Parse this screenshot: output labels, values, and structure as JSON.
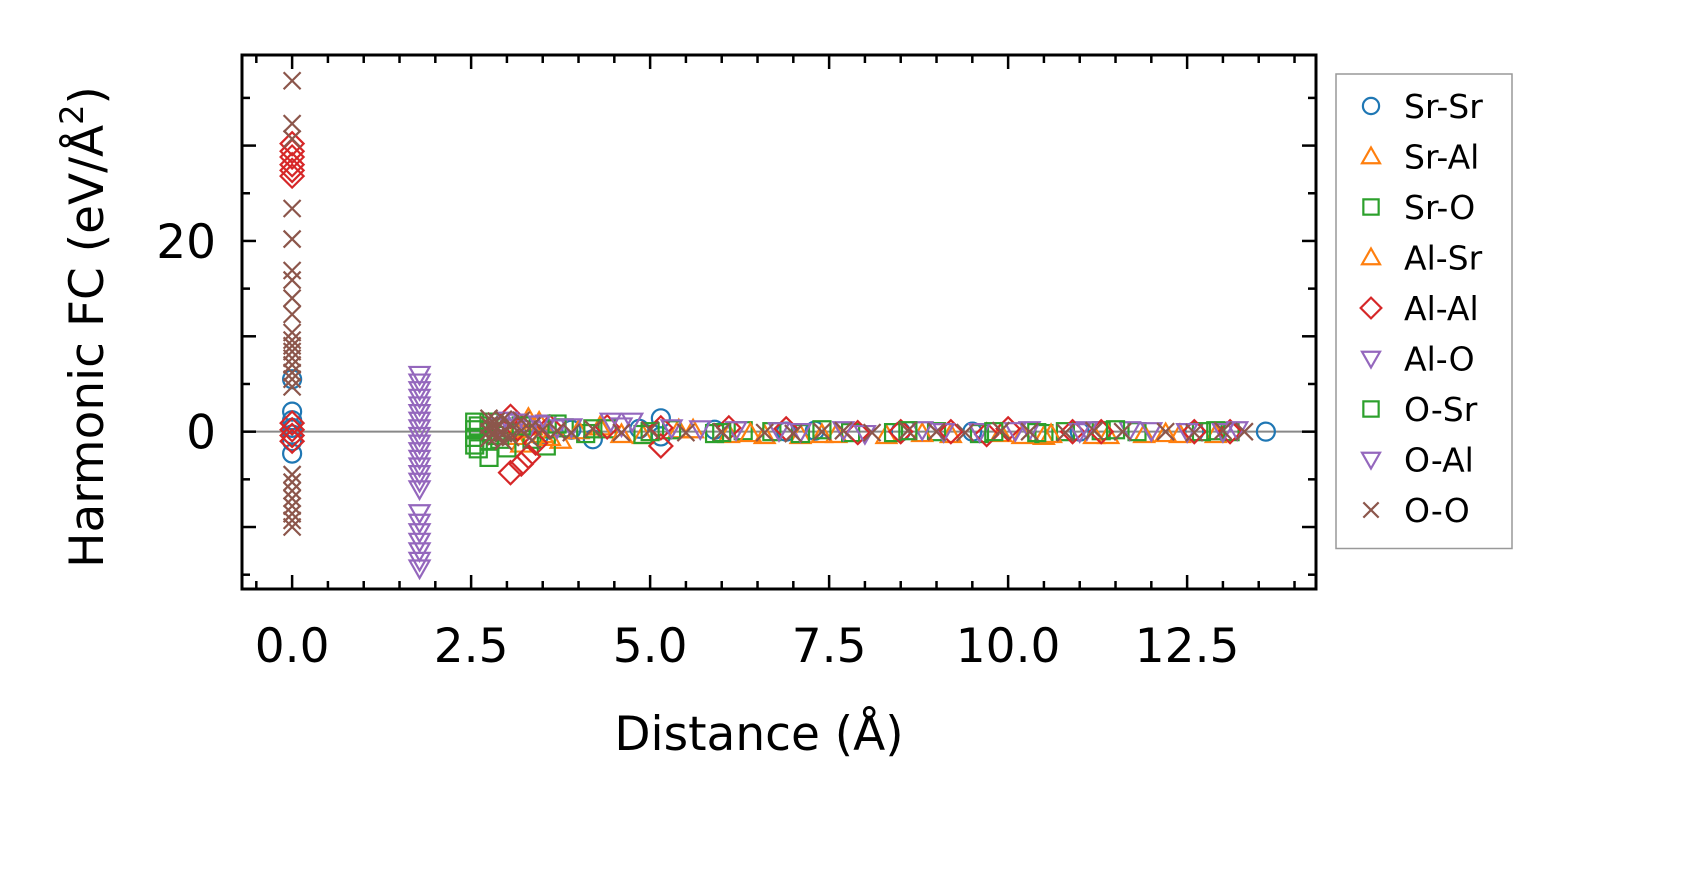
{
  "chart_data": {
    "type": "scatter",
    "xlabel": "Distance (Å)",
    "ylabel_main": "Harmonic FC (eV/Å",
    "ylabel_sup": "2",
    "ylabel_close": ")",
    "xlim": [
      -0.7,
      14.3
    ],
    "ylim": [
      -16.5,
      39.5
    ],
    "xticks": [
      0.0,
      2.5,
      5.0,
      7.5,
      10.0,
      12.5
    ],
    "xtick_labels": [
      "0.0",
      "2.5",
      "5.0",
      "7.5",
      "10.0",
      "12.5"
    ],
    "yticks": [
      0,
      20
    ],
    "ytick_labels": [
      "0",
      "20"
    ],
    "x_minor_step": 0.5,
    "y_minor_step": 5,
    "zero_line": true,
    "legend_position": "outside-right",
    "series": [
      {
        "name": "Sr-Sr",
        "marker": "circle",
        "color": "#1f77b4",
        "points": [
          [
            0,
            5.5
          ],
          [
            0,
            2.1
          ],
          [
            0,
            1.2
          ],
          [
            0,
            0.4
          ],
          [
            0,
            -0.3
          ],
          [
            0,
            -1.0
          ],
          [
            0,
            -2.3
          ],
          [
            3.45,
            -0.4
          ],
          [
            3.9,
            0.2
          ],
          [
            4.2,
            -0.8
          ],
          [
            4.85,
            0.3
          ],
          [
            5.15,
            1.4
          ],
          [
            5.15,
            -0.5
          ],
          [
            5.9,
            0.2
          ],
          [
            6.9,
            0
          ],
          [
            7.3,
            0.1
          ],
          [
            8.5,
            0
          ],
          [
            9.5,
            0
          ],
          [
            11.0,
            0
          ],
          [
            12.6,
            0
          ],
          [
            13.6,
            0
          ]
        ]
      },
      {
        "name": "Sr-Al",
        "marker": "triangle-up",
        "color": "#ff7f0e",
        "points": [
          [
            3.1,
            -0.5
          ],
          [
            3.2,
            -1.3
          ],
          [
            3.3,
            1.4
          ],
          [
            3.35,
            0.5
          ],
          [
            3.5,
            -0.3
          ],
          [
            3.75,
            -0.9
          ],
          [
            4.3,
            0.5
          ],
          [
            4.9,
            -0.4
          ],
          [
            5.4,
            0.2
          ],
          [
            6.1,
            -0.3
          ],
          [
            6.6,
            -0.4
          ],
          [
            7.1,
            -0.4
          ],
          [
            7.6,
            -0.3
          ],
          [
            8.3,
            -0.4
          ],
          [
            9.2,
            -0.3
          ],
          [
            10.2,
            -0.4
          ],
          [
            10.5,
            -0.5
          ],
          [
            11.2,
            -0.4
          ],
          [
            11.9,
            -0.3
          ],
          [
            12.4,
            -0.3
          ],
          [
            12.9,
            -0.3
          ]
        ]
      },
      {
        "name": "Sr-O",
        "marker": "square",
        "color": "#2ca02c",
        "points": [
          [
            2.55,
            1.0
          ],
          [
            2.55,
            0.2
          ],
          [
            2.55,
            -0.6
          ],
          [
            2.55,
            -1.4
          ],
          [
            2.6,
            -1.8
          ],
          [
            2.75,
            1.0
          ],
          [
            2.75,
            0
          ],
          [
            2.75,
            -1.0
          ],
          [
            2.75,
            -2.7
          ],
          [
            2.9,
            0.4
          ],
          [
            2.9,
            -0.8
          ],
          [
            3.0,
            -1.7
          ],
          [
            3.35,
            -0.8
          ],
          [
            3.55,
            -1.5
          ],
          [
            3.8,
            0.4
          ],
          [
            4.1,
            -0.2
          ],
          [
            4.4,
            0.3
          ],
          [
            4.9,
            -0.3
          ],
          [
            5.3,
            0.2
          ],
          [
            5.9,
            -0.2
          ],
          [
            6.3,
            0.1
          ],
          [
            6.7,
            0
          ],
          [
            7.1,
            -0.2
          ],
          [
            7.8,
            -0.1
          ],
          [
            8.4,
            -0.1
          ],
          [
            9.0,
            0
          ],
          [
            9.6,
            -0.2
          ],
          [
            10.5,
            -0.2
          ],
          [
            10.8,
            0
          ],
          [
            11.3,
            0.1
          ],
          [
            11.8,
            0
          ],
          [
            12.7,
            0
          ],
          [
            13.1,
            0
          ]
        ]
      },
      {
        "name": "Al-Sr",
        "marker": "triangle-up",
        "color": "#ff7f0e",
        "points": [
          [
            3.15,
            0.2
          ],
          [
            3.45,
            1.0
          ],
          [
            3.6,
            -0.6
          ],
          [
            4.0,
            0.1
          ],
          [
            4.6,
            -0.3
          ],
          [
            5.6,
            0.2
          ],
          [
            6.4,
            -0.2
          ],
          [
            7.4,
            -0.3
          ],
          [
            8.8,
            -0.2
          ],
          [
            9.9,
            -0.2
          ],
          [
            10.6,
            -0.3
          ],
          [
            11.4,
            -0.4
          ],
          [
            12.2,
            -0.2
          ]
        ]
      },
      {
        "name": "Al-Al",
        "marker": "diamond",
        "color": "#d62728",
        "points": [
          [
            0,
            30.2
          ],
          [
            0,
            29.4
          ],
          [
            0,
            28.8
          ],
          [
            0,
            28.0
          ],
          [
            0,
            27.4
          ],
          [
            0,
            26.8
          ],
          [
            0,
            0.9
          ],
          [
            0,
            0.2
          ],
          [
            0,
            -0.4
          ],
          [
            0,
            -1.0
          ],
          [
            3.05,
            -4.3
          ],
          [
            3.05,
            1.6
          ],
          [
            3.2,
            -3.4
          ],
          [
            3.3,
            -2.6
          ],
          [
            3.15,
            0.3
          ],
          [
            3.4,
            -1.2
          ],
          [
            3.6,
            0.5
          ],
          [
            4.4,
            0.5
          ],
          [
            5.15,
            -1.5
          ],
          [
            5.15,
            0.4
          ],
          [
            6.1,
            0.4
          ],
          [
            6.9,
            0.3
          ],
          [
            7.9,
            -0.1
          ],
          [
            8.5,
            0
          ],
          [
            9.2,
            0
          ],
          [
            9.7,
            -0.3
          ],
          [
            10.0,
            0.3
          ],
          [
            10.9,
            0
          ],
          [
            11.3,
            0
          ],
          [
            12.6,
            0
          ],
          [
            13.1,
            0
          ]
        ]
      },
      {
        "name": "Al-O",
        "marker": "triangle-down",
        "color": "#9467bd",
        "points": [
          [
            1.78,
            6.0
          ],
          [
            1.78,
            5.2
          ],
          [
            1.78,
            4.4
          ],
          [
            1.78,
            3.6
          ],
          [
            1.78,
            2.8
          ],
          [
            1.78,
            2.0
          ],
          [
            1.78,
            1.2
          ],
          [
            1.78,
            0.4
          ],
          [
            1.78,
            -0.4
          ],
          [
            1.78,
            -1.2
          ],
          [
            1.78,
            -2.0
          ],
          [
            1.78,
            -2.8
          ],
          [
            1.78,
            -3.6
          ],
          [
            1.78,
            -4.4
          ],
          [
            1.78,
            -5.2
          ],
          [
            1.78,
            -6.0
          ],
          [
            1.78,
            -8.5
          ],
          [
            1.78,
            -9.5
          ],
          [
            1.78,
            -10.5
          ],
          [
            1.78,
            -11.5
          ],
          [
            1.78,
            -12.5
          ],
          [
            1.78,
            -13.5
          ],
          [
            1.78,
            -14.3
          ],
          [
            2.9,
            0.6
          ],
          [
            3.15,
            1.0
          ],
          [
            3.3,
            0.3
          ],
          [
            3.55,
            0.9
          ],
          [
            3.7,
            0.4
          ],
          [
            4.45,
            1.1
          ],
          [
            4.75,
            1.1
          ],
          [
            5.3,
            0.4
          ],
          [
            6.2,
            0.2
          ],
          [
            7.1,
            0
          ],
          [
            8.0,
            -0.2
          ],
          [
            8.8,
            0.2
          ],
          [
            9.6,
            0
          ],
          [
            10.3,
            0.2
          ],
          [
            11.0,
            0
          ],
          [
            11.7,
            0.2
          ],
          [
            12.5,
            0
          ],
          [
            13.2,
            0.2
          ]
        ]
      },
      {
        "name": "O-Sr",
        "marker": "square",
        "color": "#2ca02c",
        "points": [
          [
            2.6,
            0.6
          ],
          [
            2.85,
            -0.4
          ],
          [
            3.2,
            0.6
          ],
          [
            3.7,
            0.8
          ],
          [
            4.2,
            0.3
          ],
          [
            5.0,
            0
          ],
          [
            6.0,
            -0.1
          ],
          [
            7.4,
            0.2
          ],
          [
            8.6,
            0.1
          ],
          [
            9.8,
            0
          ],
          [
            10.4,
            -0.1
          ],
          [
            11.5,
            0.2
          ],
          [
            12.9,
            0.1
          ]
        ]
      },
      {
        "name": "O-Al",
        "marker": "triangle-down",
        "color": "#9467bd",
        "points": [
          [
            3.0,
            1.2
          ],
          [
            3.45,
            0.8
          ],
          [
            3.9,
            0.5
          ],
          [
            4.6,
            0.6
          ],
          [
            5.7,
            0.3
          ],
          [
            6.8,
            0.1
          ],
          [
            7.7,
            0.2
          ],
          [
            9.1,
            0
          ],
          [
            10.1,
            0.1
          ],
          [
            11.1,
            0.2
          ],
          [
            12.0,
            0.1
          ],
          [
            13.0,
            0
          ]
        ]
      },
      {
        "name": "O-O",
        "marker": "x",
        "color": "#8c564b",
        "points": [
          [
            0,
            36.8
          ],
          [
            0,
            32.3
          ],
          [
            0,
            30.7
          ],
          [
            0,
            23.4
          ],
          [
            0,
            20.2
          ],
          [
            0,
            16.9
          ],
          [
            0,
            15.9
          ],
          [
            0,
            14.0
          ],
          [
            0,
            12.3
          ],
          [
            0,
            10.4
          ],
          [
            0,
            9.6
          ],
          [
            0,
            9.0
          ],
          [
            0,
            8.4
          ],
          [
            0,
            7.7
          ],
          [
            0,
            7.0
          ],
          [
            0,
            6.2
          ],
          [
            0,
            5.5
          ],
          [
            0,
            4.7
          ],
          [
            0,
            -4.5
          ],
          [
            0,
            -5.3
          ],
          [
            0,
            -6.2
          ],
          [
            0,
            -7.0
          ],
          [
            0,
            -7.8
          ],
          [
            0,
            -8.6
          ],
          [
            0,
            -9.3
          ],
          [
            0,
            -10.0
          ],
          [
            2.75,
            1.4
          ],
          [
            2.75,
            0.7
          ],
          [
            2.75,
            0
          ],
          [
            2.75,
            -0.7
          ],
          [
            2.85,
            1.1
          ],
          [
            2.85,
            0.3
          ],
          [
            2.85,
            -0.5
          ],
          [
            2.95,
            1.3
          ],
          [
            2.95,
            -0.2
          ],
          [
            2.95,
            -1.0
          ],
          [
            3.05,
            0.8
          ],
          [
            3.05,
            -0.6
          ],
          [
            3.2,
            1.2
          ],
          [
            3.2,
            0.1
          ],
          [
            3.35,
            0.6
          ],
          [
            3.35,
            -0.9
          ],
          [
            3.5,
            0.2
          ],
          [
            3.7,
            0.1
          ],
          [
            3.9,
            -0.1
          ],
          [
            4.2,
            0.3
          ],
          [
            4.6,
            -0.1
          ],
          [
            5.0,
            0.2
          ],
          [
            5.5,
            -0.1
          ],
          [
            6.0,
            0
          ],
          [
            6.6,
            -0.1
          ],
          [
            7.0,
            -0.2
          ],
          [
            7.4,
            0
          ],
          [
            7.7,
            0.1
          ],
          [
            8.1,
            -0.1
          ],
          [
            8.6,
            0.1
          ],
          [
            9.0,
            0
          ],
          [
            9.4,
            -0.1
          ],
          [
            9.9,
            0.1
          ],
          [
            10.3,
            0
          ],
          [
            10.8,
            -0.1
          ],
          [
            11.2,
            0.1
          ],
          [
            11.6,
            0
          ],
          [
            12.2,
            0
          ],
          [
            12.6,
            -0.1
          ],
          [
            13.0,
            0.1
          ],
          [
            13.3,
            0
          ]
        ]
      }
    ]
  }
}
